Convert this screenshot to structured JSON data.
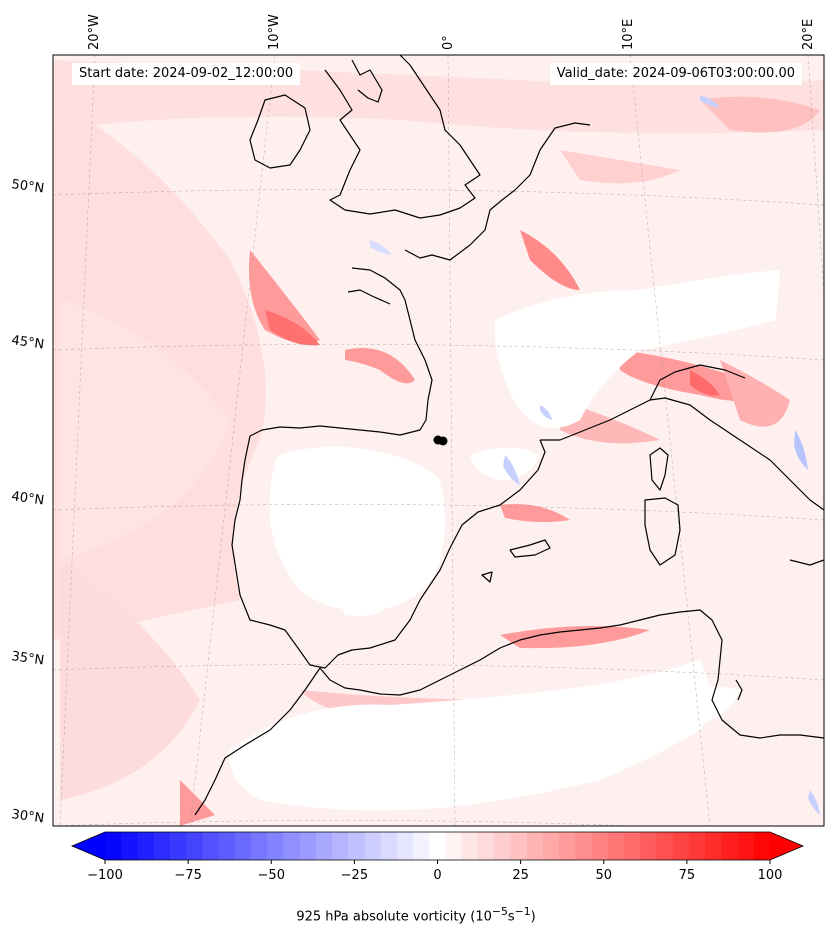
{
  "map": {
    "start_label": "Start date: 2024-09-02_12:00:00",
    "valid_label": "Valid_date: 2024-09-06T03:00:00.00",
    "longitude_labels": [
      "20°W",
      "10°W",
      "0°",
      "10°E",
      "20°E"
    ],
    "latitude_labels": [
      "50°N",
      "45°N",
      "40°N",
      "35°N",
      "30°N"
    ],
    "field": "925 hPa absolute vorticity",
    "colormap": "bwr",
    "coastlines": true,
    "gridlines": true
  },
  "colorbar": {
    "ticks": [
      -100,
      -75,
      -50,
      -25,
      0,
      25,
      50,
      75,
      100
    ],
    "tick_labels": [
      "−100",
      "−75",
      "−50",
      "−25",
      "0",
      "25",
      "50",
      "75",
      "100"
    ],
    "range": [
      -100,
      100
    ],
    "levels": 41,
    "extend": "both",
    "label": "925 hPa absolute vorticity (10",
    "label_sup1": "−5",
    "label_mid": "s",
    "label_sup2": "−1",
    "label_end": ")",
    "neg_color": "#0000ff",
    "mid_color": "#ffffff",
    "pos_color": "#ff0000"
  }
}
